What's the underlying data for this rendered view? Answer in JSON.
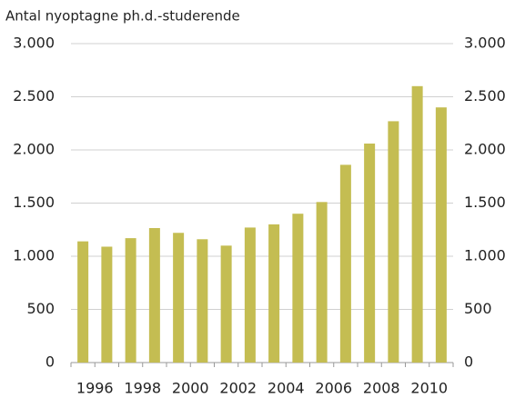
{
  "chart_data": {
    "type": "bar",
    "y_axis_label": "Antal nyoptagne ph.d.-studerende",
    "categories": [
      "1996",
      null,
      "1998",
      null,
      "2000",
      null,
      "2002",
      null,
      "2004",
      null,
      "2006",
      null,
      "2008",
      null,
      "2010",
      null
    ],
    "values": [
      1140,
      1090,
      1170,
      1265,
      1220,
      1160,
      1100,
      1270,
      1300,
      1400,
      1510,
      1860,
      2060,
      2270,
      2600,
      2400
    ],
    "color": "#c4bd52",
    "ylim": [
      0,
      3000
    ],
    "yticks": [
      0,
      500,
      {
        "value": 1000,
        "label": "1.000"
      },
      {
        "value": 1500,
        "label": "1.500"
      },
      {
        "value": 2000,
        "label": "2.000"
      },
      {
        "value": 2500,
        "label": "2.500"
      },
      {
        "value": 3000,
        "label": "3.000"
      }
    ],
    "y2lim": [
      0,
      3000
    ],
    "y2ticks": [
      0,
      500,
      {
        "value": 1000,
        "label": "1.000"
      },
      {
        "value": 1500,
        "label": "1.500"
      },
      {
        "value": 2000,
        "label": "2.000"
      },
      {
        "value": 2500,
        "label": "2.500"
      },
      {
        "value": 3000,
        "label": "3.000"
      }
    ],
    "grid": true
  }
}
